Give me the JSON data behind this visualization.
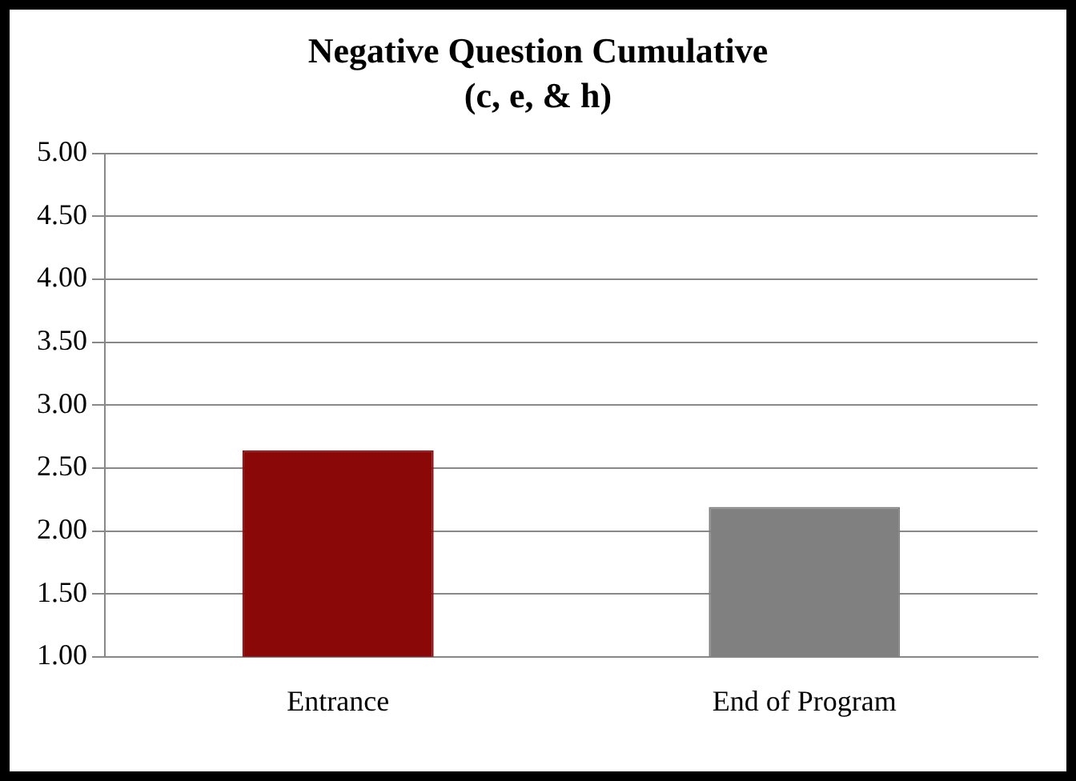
{
  "chart_data": {
    "type": "bar",
    "title": "Negative Question Cumulative\n(c, e, & h)",
    "categories": [
      "Entrance",
      "End of Program"
    ],
    "values": [
      2.64,
      2.19
    ],
    "colors": [
      "#8b0808",
      "#808080"
    ],
    "ylim": [
      1,
      5
    ],
    "yticks": [
      {
        "value": 1,
        "label": "1.00"
      },
      {
        "value": 1.5,
        "label": "1.50"
      },
      {
        "value": 2,
        "label": "2.00"
      },
      {
        "value": 2.5,
        "label": "2.50"
      },
      {
        "value": 3,
        "label": "3.00"
      },
      {
        "value": 3.5,
        "label": "3.50"
      },
      {
        "value": 4,
        "label": "4.00"
      },
      {
        "value": 4.5,
        "label": "4.50"
      },
      {
        "value": 5,
        "label": "5.00"
      }
    ],
    "grid": "y"
  }
}
